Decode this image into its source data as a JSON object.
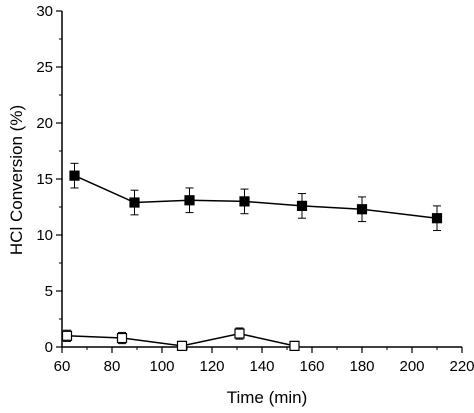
{
  "chart_data": {
    "type": "line",
    "title": "",
    "xlabel": "Time (min)",
    "ylabel": "HCl Conversion (%)",
    "xlim": [
      60,
      220
    ],
    "ylim": [
      0,
      30
    ],
    "x_ticks": [
      60,
      80,
      100,
      120,
      140,
      160,
      180,
      200,
      220
    ],
    "x_tick_labels": [
      "60",
      "80",
      "100",
      "120",
      "140",
      "160",
      "180",
      "200",
      "220"
    ],
    "y_ticks": [
      0,
      5,
      10,
      15,
      20,
      25,
      30
    ],
    "y_tick_labels": [
      "0",
      "5",
      "10",
      "15",
      "20",
      "25",
      "30"
    ],
    "grid": false,
    "legend": "none",
    "series": [
      {
        "marker": "filled-square",
        "color": "#000000",
        "x": [
          65,
          89,
          111,
          133,
          156,
          180,
          210
        ],
        "y": [
          15.3,
          12.9,
          13.1,
          13.0,
          12.6,
          12.3,
          11.5
        ],
        "error": [
          1.1,
          1.1,
          1.1,
          1.1,
          1.1,
          1.1,
          1.1
        ]
      },
      {
        "marker": "open-square",
        "color": "#000000",
        "x": [
          62,
          84,
          108,
          131,
          153
        ],
        "y": [
          1.0,
          0.8,
          0.1,
          1.2,
          0.1
        ],
        "error": [
          0.5,
          0.5,
          0.4,
          0.5,
          0.4
        ]
      }
    ]
  }
}
